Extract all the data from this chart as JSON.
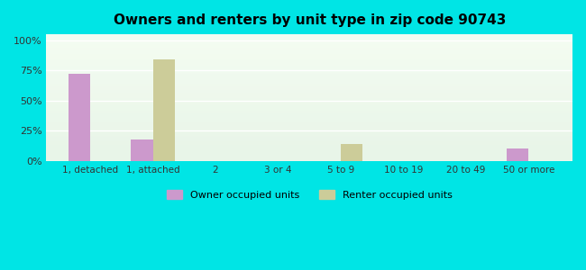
{
  "title": "Owners and renters by unit type in zip code 90743",
  "categories": [
    "1, detached",
    "1, attached",
    "2",
    "3 or 4",
    "5 to 9",
    "10 to 19",
    "20 to 49",
    "50 or more"
  ],
  "owner_values": [
    72,
    18,
    0,
    0,
    0,
    0,
    0,
    10
  ],
  "renter_values": [
    0,
    84,
    0,
    0,
    14,
    0,
    0,
    0
  ],
  "owner_color": "#cc99cc",
  "renter_color": "#cccc99",
  "background_outer": "#00e5e5",
  "background_inner_top": "#e8f5e8",
  "background_inner_bottom": "#f0f8f0",
  "yticks": [
    0,
    25,
    50,
    75,
    100
  ],
  "ytick_labels": [
    "0%",
    "25%",
    "50%",
    "75%",
    "100%"
  ],
  "ylim": [
    0,
    105
  ],
  "legend_owner": "Owner occupied units",
  "legend_renter": "Renter occupied units",
  "bar_width": 0.35
}
